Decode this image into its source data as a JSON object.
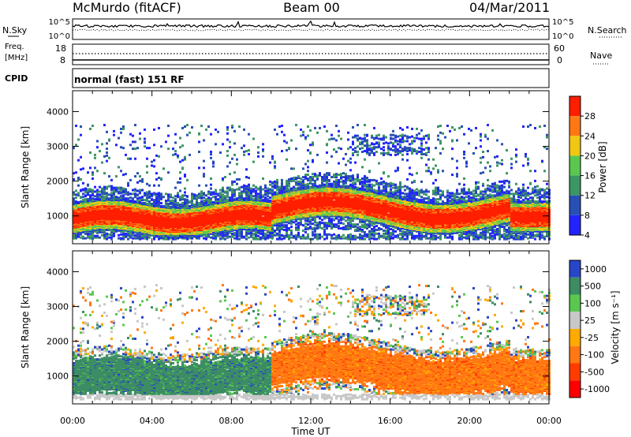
{
  "header": {
    "station": "McMurdo (fitACF)",
    "beam": "Beam 00",
    "date": "04/Mar/2011"
  },
  "noise_panel": {
    "left_label": "N.Sky",
    "right_label": "N.Search",
    "ticks_left": [
      "10^5",
      "10^0"
    ],
    "ticks_right": [
      "10^5",
      "10^0"
    ]
  },
  "freq_panel": {
    "left_label_1": "Freq.",
    "left_label_2": "[MHz]",
    "ticks_left": [
      "18",
      "8"
    ],
    "right_label": "Nave",
    "ticks_right": [
      "60",
      "0"
    ]
  },
  "cpid_panel": {
    "label": "CPID",
    "text": "normal (fast) 151 RF"
  },
  "chart_data": [
    {
      "type": "heatmap",
      "ylabel": "Slant Range [km]",
      "ylim": [
        200,
        4600
      ],
      "y_ticks": [
        "1000",
        "2000",
        "3000",
        "4000"
      ],
      "x_ticks": [
        "00:00",
        "04:00",
        "08:00",
        "12:00",
        "16:00",
        "20:00",
        "00:00"
      ],
      "colorbar_label": "Power [dB]",
      "colorbar_ticks": [
        "28",
        "24",
        "20",
        "16",
        "12",
        "8",
        "4"
      ],
      "colors": [
        "#2323ff",
        "#2850b4",
        "#3c9664",
        "#5ac850",
        "#f0c814",
        "#ff7814",
        "#ff1e00"
      ]
    },
    {
      "type": "heatmap",
      "ylabel": "Slant Range [km]",
      "ylim": [
        200,
        4600
      ],
      "y_ticks": [
        "1000",
        "2000",
        "3000",
        "4000"
      ],
      "x_ticks": [
        "00:00",
        "04:00",
        "08:00",
        "12:00",
        "16:00",
        "20:00",
        "00:00"
      ],
      "xlabel": "Time UT",
      "colorbar_label": "Velocity [m s⁻¹]",
      "colorbar_ticks": [
        "1000",
        "500",
        "100",
        "25",
        "-25",
        "-100",
        "-500",
        "-1000"
      ],
      "colors": [
        "#2846c8",
        "#3c8c64",
        "#5ac850",
        "#c8c8c8",
        "#ffaa00",
        "#ff7814",
        "#ff3c00",
        "#ff0000"
      ]
    }
  ]
}
